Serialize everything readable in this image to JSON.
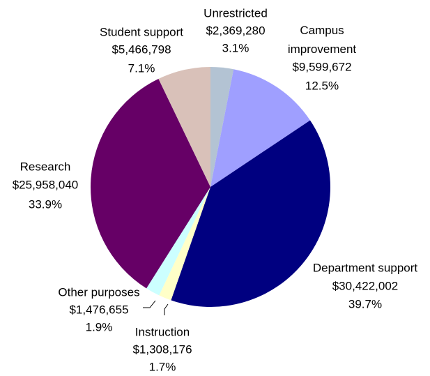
{
  "chart_data": {
    "type": "pie",
    "categories": [
      "Unrestricted",
      "Campus improvement",
      "Department support",
      "Instruction",
      "Other purposes",
      "Research",
      "Student support"
    ],
    "values": [
      2369280,
      9599672,
      30422002,
      1308176,
      1476655,
      25958040,
      5466798
    ],
    "value_labels": [
      "$2,369,280",
      "$9,599,672",
      "$30,422,002",
      "$1,308,176",
      "$1,476,655",
      "$25,958,040",
      "$5,466,798"
    ],
    "percents": [
      3.1,
      12.5,
      39.7,
      1.7,
      1.9,
      33.9,
      7.1
    ],
    "percent_labels": [
      "3.1%",
      "12.5%",
      "39.7%",
      "1.7%",
      "1.9%",
      "33.9%",
      "7.1%"
    ],
    "colors": [
      "#b3c3d3",
      "#9f9fff",
      "#000080",
      "#ffffc8",
      "#ccffff",
      "#660066",
      "#d9c1b9"
    ]
  }
}
